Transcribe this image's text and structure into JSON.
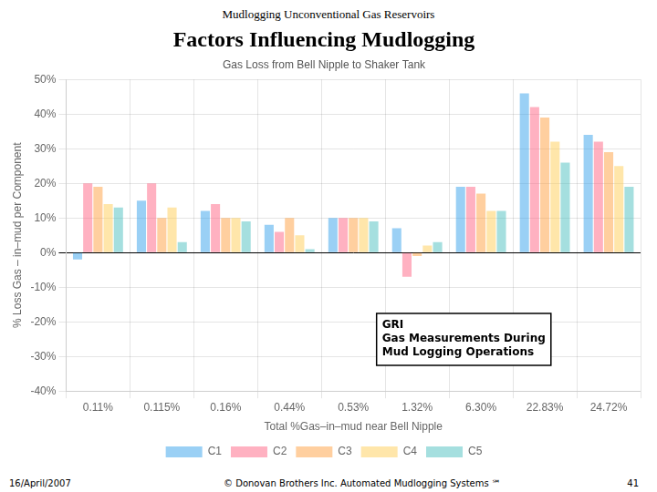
{
  "chart_data": {
    "type": "bar",
    "suptitle": "Mudlogging Unconventional Gas Reservoirs",
    "title": "Factors Influencing Mudlogging",
    "subtitle": "Gas Loss from Bell Nipple to Shaker Tank",
    "xlabel": "Total %Gas–in–mud near Bell Nipple",
    "ylabel": "% Loss Gas – in–mud per Component",
    "categories": [
      "0.11%",
      "0.115%",
      "0.16%",
      "0.44%",
      "0.53%",
      "1.32%",
      "6.30%",
      "22.83%",
      "24.72%"
    ],
    "series": [
      {
        "name": "C1",
        "values": [
          -2,
          15,
          12,
          8,
          10,
          7,
          19,
          46,
          34
        ]
      },
      {
        "name": "C2",
        "values": [
          20,
          20,
          14,
          6,
          10,
          -7,
          19,
          42,
          32
        ]
      },
      {
        "name": "C3",
        "values": [
          19,
          10,
          10,
          10,
          10,
          -1,
          17,
          39,
          29
        ]
      },
      {
        "name": "C4",
        "values": [
          14,
          13,
          10,
          5,
          10,
          2,
          12,
          32,
          25
        ]
      },
      {
        "name": "C5",
        "values": [
          13,
          3,
          9,
          1,
          9,
          3,
          12,
          26,
          19
        ]
      }
    ],
    "ylim": [
      -40,
      50
    ],
    "yticks": [
      {
        "value": -40,
        "label": "-40%"
      },
      {
        "value": -30,
        "label": "-30%"
      },
      {
        "value": -20,
        "label": "-20%"
      },
      {
        "value": -10,
        "label": "-10%"
      },
      {
        "value": 0,
        "label": "0%"
      },
      {
        "value": 10,
        "label": "10%"
      },
      {
        "value": 20,
        "label": "20%"
      },
      {
        "value": 30,
        "label": "30%"
      },
      {
        "value": 40,
        "label": "40%"
      },
      {
        "value": 50,
        "label": "50%"
      }
    ],
    "grid": true,
    "legend": "bottom",
    "annotations": [
      "GRI\nGas Measurements During\nMud Logging Operations"
    ],
    "footer": [
      "16/April/2007",
      "© Donovan Brothers Inc.    Automated Mudlogging Systems ℠",
      "41"
    ]
  }
}
